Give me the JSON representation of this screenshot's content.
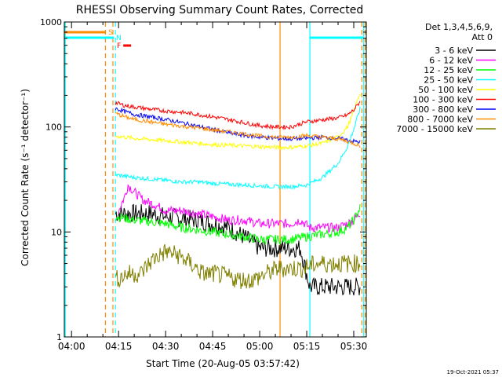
{
  "chart_data": {
    "type": "line",
    "title": "RHESSI Observing Summary Count Rates, Corrected",
    "xlabel": "Start Time (20-Aug-05 03:57:42)",
    "ylabel": "Corrected Count Rate (s⁻¹ detector⁻¹)",
    "yscale": "log",
    "ylim": [
      1,
      1000
    ],
    "xlim_minutes": [
      -2.3,
      94.0
    ],
    "x_ticks": [
      {
        "label": "04:00",
        "min": 0
      },
      {
        "label": "04:15",
        "min": 15
      },
      {
        "label": "04:30",
        "min": 30
      },
      {
        "label": "04:45",
        "min": 45
      },
      {
        "label": "05:00",
        "min": 60
      },
      {
        "label": "05:15",
        "min": 75
      },
      {
        "label": "05:30",
        "min": 90
      }
    ],
    "y_ticks": [
      {
        "label": "1",
        "v": 1
      },
      {
        "label": "10",
        "v": 10
      },
      {
        "label": "100",
        "v": 100
      },
      {
        "label": "1000",
        "v": 1000
      }
    ],
    "legend_header": [
      "Det 1,3,4,5,6,9,",
      "Att 0"
    ],
    "series": [
      {
        "name": "3 - 6 keV",
        "color": "#000000",
        "x": [
          14,
          15,
          17,
          20,
          25,
          30,
          35,
          40,
          45,
          50,
          55,
          60,
          65,
          70,
          73,
          76,
          80,
          85,
          88,
          90,
          92
        ],
        "values": [
          15,
          15,
          15,
          15,
          15,
          14,
          13.5,
          13,
          12,
          11,
          9,
          7,
          7,
          7,
          7,
          3,
          3,
          3,
          3,
          3,
          3
        ]
      },
      {
        "name": "6 - 12 keV",
        "color": "#ff00ff",
        "x": [
          15,
          17,
          18,
          20,
          23,
          27,
          30,
          35,
          40,
          45,
          50,
          55,
          60,
          65,
          70,
          73,
          76,
          80,
          85,
          88,
          90,
          92
        ],
        "values": [
          16,
          22,
          28,
          24,
          20,
          18,
          16,
          16,
          15,
          14,
          13,
          13,
          12,
          12,
          12,
          13,
          11,
          11,
          11,
          12,
          13,
          15
        ]
      },
      {
        "name": "12 - 25 keV",
        "color": "#00ff00",
        "x": [
          14,
          17,
          20,
          25,
          30,
          35,
          40,
          45,
          50,
          55,
          60,
          65,
          70,
          75,
          80,
          85,
          88,
          90,
          92
        ],
        "values": [
          14,
          13.5,
          13,
          12.5,
          12,
          11,
          10.5,
          10,
          9.5,
          9,
          8.5,
          8.5,
          8.5,
          9,
          9.5,
          10,
          11,
          13,
          17
        ]
      },
      {
        "name": "25 - 50 keV",
        "color": "#00ffff",
        "x": [
          14,
          17,
          20,
          25,
          30,
          35,
          40,
          45,
          50,
          55,
          60,
          65,
          70,
          75,
          80,
          85,
          88,
          90,
          92
        ],
        "values": [
          35,
          34,
          33,
          32,
          31,
          30,
          30,
          29,
          28.5,
          28,
          27.5,
          27,
          27,
          28,
          33,
          45,
          65,
          95,
          150
        ]
      },
      {
        "name": "50 - 100 keV",
        "color": "#ffff00",
        "x": [
          14,
          17,
          20,
          25,
          30,
          35,
          40,
          45,
          50,
          55,
          60,
          65,
          70,
          75,
          80,
          85,
          88,
          90,
          92
        ],
        "values": [
          82,
          80,
          78,
          76,
          74,
          72,
          70,
          68,
          67,
          66,
          65,
          64,
          64,
          66,
          70,
          80,
          100,
          140,
          210
        ]
      },
      {
        "name": "100 - 300 keV",
        "color": "#ff0000",
        "x": [
          14,
          17,
          20,
          25,
          30,
          35,
          40,
          45,
          50,
          55,
          60,
          65,
          70,
          75,
          80,
          85,
          88,
          90,
          92
        ],
        "values": [
          170,
          160,
          155,
          148,
          142,
          138,
          132,
          125,
          118,
          110,
          103,
          100,
          100,
          112,
          117,
          122,
          130,
          145,
          175
        ]
      },
      {
        "name": "300 - 800 keV",
        "color": "#0000ff",
        "x": [
          14,
          17,
          20,
          25,
          30,
          35,
          40,
          45,
          50,
          55,
          60,
          65,
          70,
          75,
          80,
          85,
          88,
          90,
          92
        ],
        "values": [
          150,
          140,
          132,
          125,
          118,
          110,
          102,
          95,
          88,
          83,
          80,
          78,
          77,
          78,
          80,
          78,
          75,
          73,
          72
        ]
      },
      {
        "name": "800 - 7000 keV",
        "color": "#ff8c00",
        "x": [
          14,
          17,
          20,
          25,
          30,
          35,
          40,
          45,
          50,
          55,
          60,
          65,
          70,
          75,
          80,
          85,
          88,
          90,
          92
        ],
        "values": [
          135,
          125,
          118,
          112,
          106,
          102,
          98,
          94,
          90,
          86,
          82,
          80,
          80,
          83,
          80,
          77,
          73,
          70,
          66
        ]
      },
      {
        "name": "7000 - 15000 keV",
        "color": "#808000",
        "x": [
          14,
          18,
          22,
          26,
          30,
          34,
          38,
          42,
          46,
          50,
          54,
          58,
          62,
          66,
          70,
          74,
          78,
          82,
          86,
          90,
          92
        ],
        "values": [
          3.5,
          4,
          4,
          5.5,
          6.5,
          6,
          5,
          4,
          4,
          3.7,
          3.5,
          3.5,
          4,
          4.5,
          4.5,
          4.5,
          5,
          5,
          5,
          5,
          5
        ]
      }
    ],
    "flag_bars": [
      {
        "label": "S",
        "color": "#ff8c00",
        "x": [
          -2.3,
          11
        ]
      },
      {
        "label": "N",
        "color": "#00ffff",
        "x": [
          -2.3,
          13.5
        ]
      },
      {
        "label": "F",
        "color": "#ff0000",
        "x": [
          16.5,
          19
        ]
      },
      {
        "label": "",
        "color": "#00ffff",
        "x": [
          76,
          93
        ]
      }
    ],
    "vertical_markers": [
      {
        "min": -2.0,
        "color": "#00ffff",
        "style": "solid"
      },
      {
        "min": 10.8,
        "color": "#ff8c00",
        "style": "dashed"
      },
      {
        "min": 13.2,
        "color": "#ff8c00",
        "style": "dashed"
      },
      {
        "min": 14.0,
        "color": "#00ffff",
        "style": "dashed"
      },
      {
        "min": 66.5,
        "color": "#ff8c00",
        "style": "solid"
      },
      {
        "min": 76.0,
        "color": "#00ffff",
        "style": "solid"
      },
      {
        "min": 92.6,
        "color": "#ff8c00",
        "style": "dashed"
      },
      {
        "min": 93.2,
        "color": "#00ffff",
        "style": "solid"
      },
      {
        "min": 93.7,
        "color": "#ff8c00",
        "style": "dashed"
      }
    ],
    "footer_timestamp": "19-Oct-2021 05:37"
  }
}
